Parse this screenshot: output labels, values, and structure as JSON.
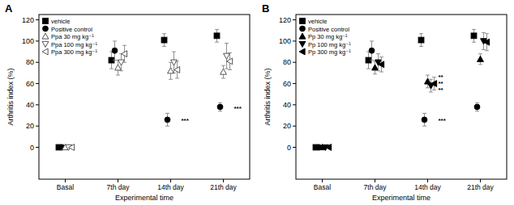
{
  "chart_data": [
    {
      "type": "scatter",
      "title": "A",
      "x_label": "Experimental time",
      "y_label": "Arthritis index (%)",
      "categories": [
        "Basal",
        "7th day",
        "14th day",
        "21th day"
      ],
      "ylim": [
        -30,
        125
      ],
      "yticks": [
        0,
        20,
        40,
        60,
        80,
        100,
        120
      ],
      "legend": "upper-left",
      "series": [
        {
          "name": "vehicle",
          "color": "#000000",
          "marker": "square",
          "values": [
            0,
            82,
            101,
            105
          ],
          "errors": [
            0,
            8,
            6,
            6
          ]
        },
        {
          "name": "Positive control",
          "color": "#000000",
          "marker": "circle",
          "values": [
            0,
            91,
            26,
            38
          ],
          "errors": [
            0,
            9,
            6,
            4
          ]
        },
        {
          "name": "Ppa 30  mg kg⁻¹",
          "color": "#555555",
          "marker": "open-triangle-up",
          "values": [
            0,
            75,
            72,
            71
          ],
          "errors": [
            0,
            7,
            8,
            6
          ]
        },
        {
          "name": "Ppa 100  mg kg⁻¹",
          "color": "#555555",
          "marker": "open-triangle-down",
          "values": [
            0,
            80,
            80,
            86
          ],
          "errors": [
            0,
            8,
            10,
            12
          ]
        },
        {
          "name": "Ppa 300  mg kg⁻¹",
          "color": "#555555",
          "marker": "open-triangle-left",
          "values": [
            0,
            88,
            73,
            81
          ],
          "errors": [
            0,
            8,
            8,
            8
          ]
        }
      ],
      "annotations": [
        {
          "text": "***",
          "category": "14th day",
          "y": 26
        },
        {
          "text": "***",
          "category": "21th day",
          "y": 38
        }
      ]
    },
    {
      "type": "scatter",
      "title": "B",
      "x_label": "Experimental time",
      "y_label": "Arthritis index (%)",
      "categories": [
        "Basal",
        "7th day",
        "14th day",
        "21th day"
      ],
      "ylim": [
        -30,
        125
      ],
      "yticks": [
        0,
        20,
        40,
        60,
        80,
        100,
        120
      ],
      "legend": "upper-left",
      "series": [
        {
          "name": "vehicle",
          "color": "#000000",
          "marker": "square",
          "values": [
            0,
            82,
            101,
            105
          ],
          "errors": [
            0,
            8,
            6,
            6
          ]
        },
        {
          "name": "Positive control",
          "color": "#000000",
          "marker": "circle",
          "values": [
            0,
            91,
            26,
            38
          ],
          "errors": [
            0,
            9,
            6,
            4
          ]
        },
        {
          "name": "Pp 30  mg kg⁻¹",
          "color": "#000000",
          "marker": "triangle-up",
          "values": [
            0,
            75,
            62,
            83
          ],
          "errors": [
            0,
            6,
            6,
            5
          ]
        },
        {
          "name": "Pp 100  mg kg⁻¹",
          "color": "#000000",
          "marker": "triangle-down",
          "values": [
            0,
            80,
            58,
            100
          ],
          "errors": [
            0,
            8,
            6,
            8
          ]
        },
        {
          "name": "Pp 300  mg kg⁻¹",
          "color": "#000000",
          "marker": "triangle-left",
          "values": [
            0,
            78,
            60,
            99
          ],
          "errors": [
            0,
            7,
            6,
            8
          ]
        }
      ],
      "annotations": [
        {
          "text": "***",
          "category": "14th day",
          "y": 26
        },
        {
          "text": "**",
          "category": "14th day",
          "y": 67
        },
        {
          "text": "**",
          "category": "14th day",
          "y": 61
        },
        {
          "text": "**",
          "category": "14th day",
          "y": 55
        }
      ]
    }
  ]
}
